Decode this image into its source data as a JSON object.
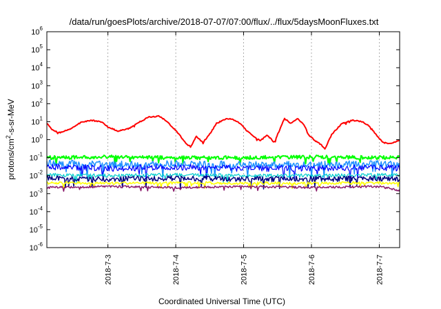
{
  "chart_data": {
    "type": "line",
    "title": "/data/run/goesPlots/archive/2018-07-07/07:00/flux/../flux/5daysMoonFluxes.txt",
    "xlabel": "Coordinated Universal Time (UTC)",
    "ylabel": {
      "base": "protons/cm",
      "sup": "2",
      "rest": "-s-sr-MeV"
    },
    "scale_y": "log",
    "ylim": [
      -6,
      6
    ],
    "y_ticks": [
      {
        "exp": -6,
        "base": "10",
        "sup": "-6"
      },
      {
        "exp": -5,
        "base": "10",
        "sup": "-5"
      },
      {
        "exp": -4,
        "base": "10",
        "sup": "-4"
      },
      {
        "exp": -3,
        "base": "10",
        "sup": "-3"
      },
      {
        "exp": -2,
        "base": "10",
        "sup": "-2"
      },
      {
        "exp": -1,
        "base": "10",
        "sup": "-1"
      },
      {
        "exp": 0,
        "base": "10",
        "sup": "0"
      },
      {
        "exp": 1,
        "base": "10",
        "sup": "1"
      },
      {
        "exp": 2,
        "base": "10",
        "sup": "2"
      },
      {
        "exp": 3,
        "base": "10",
        "sup": "3"
      },
      {
        "exp": 4,
        "base": "10",
        "sup": "4"
      },
      {
        "exp": 5,
        "base": "10",
        "sup": "5"
      },
      {
        "exp": 6,
        "base": "10",
        "sup": "6"
      }
    ],
    "xlim": [
      2.1,
      7.3
    ],
    "x_ticks": [
      {
        "day": 3,
        "label": "2018-7-3"
      },
      {
        "day": 4,
        "label": "2018-7-4"
      },
      {
        "day": 5,
        "label": "2018-7-5"
      },
      {
        "day": 6,
        "label": "2018-7-6"
      },
      {
        "day": 7,
        "label": "2018-7-7"
      }
    ],
    "grid": true,
    "series": [
      {
        "color": "#ff0000",
        "width": 2,
        "noise": 0.06,
        "points": [
          [
            2.1,
            8
          ],
          [
            2.2,
            3
          ],
          [
            2.3,
            2.5
          ],
          [
            2.45,
            4
          ],
          [
            2.6,
            9
          ],
          [
            2.75,
            12
          ],
          [
            2.9,
            10
          ],
          [
            3.0,
            5
          ],
          [
            3.15,
            3
          ],
          [
            3.3,
            4
          ],
          [
            3.45,
            9
          ],
          [
            3.6,
            18
          ],
          [
            3.75,
            20
          ],
          [
            3.85,
            12
          ],
          [
            3.95,
            5
          ],
          [
            4.05,
            2
          ],
          [
            4.15,
            0.6
          ],
          [
            4.22,
            0.4
          ],
          [
            4.3,
            1.5
          ],
          [
            4.4,
            0.7
          ],
          [
            4.5,
            2
          ],
          [
            4.6,
            8
          ],
          [
            4.75,
            15
          ],
          [
            4.85,
            13
          ],
          [
            4.95,
            8
          ],
          [
            5.05,
            3
          ],
          [
            5.15,
            1.5
          ],
          [
            5.25,
            0.9
          ],
          [
            5.35,
            1.8
          ],
          [
            5.45,
            0.7
          ],
          [
            5.55,
            5
          ],
          [
            5.6,
            15
          ],
          [
            5.7,
            8
          ],
          [
            5.8,
            15
          ],
          [
            5.9,
            6
          ],
          [
            5.95,
            2
          ],
          [
            6.05,
            0.9
          ],
          [
            6.15,
            0.5
          ],
          [
            6.2,
            0.3
          ],
          [
            6.3,
            2
          ],
          [
            6.45,
            8
          ],
          [
            6.6,
            12
          ],
          [
            6.75,
            10
          ],
          [
            6.85,
            6
          ],
          [
            6.95,
            2
          ],
          [
            7.05,
            0.7
          ],
          [
            7.15,
            0.6
          ],
          [
            7.25,
            0.8
          ],
          [
            7.3,
            0.9
          ]
        ]
      },
      {
        "color": "#00ff00",
        "width": 2,
        "noise": 0.2,
        "points": [
          [
            2.1,
            0.1
          ],
          [
            3.0,
            0.11
          ],
          [
            4.0,
            0.1
          ],
          [
            5.0,
            0.1
          ],
          [
            6.0,
            0.11
          ],
          [
            7.0,
            0.1
          ],
          [
            7.3,
            0.11
          ]
        ]
      },
      {
        "color": "#1e90ff",
        "width": 1.5,
        "noise": 0.4,
        "points": [
          [
            2.1,
            0.05
          ],
          [
            3.0,
            0.04
          ],
          [
            4.0,
            0.045
          ],
          [
            5.0,
            0.04
          ],
          [
            6.0,
            0.04
          ],
          [
            7.0,
            0.045
          ],
          [
            7.3,
            0.04
          ]
        ]
      },
      {
        "color": "#0000ff",
        "width": 1.2,
        "noise": 0.35,
        "points": [
          [
            2.1,
            0.03
          ],
          [
            3.0,
            0.025
          ],
          [
            4.0,
            0.03
          ],
          [
            5.0,
            0.025
          ],
          [
            6.0,
            0.025
          ],
          [
            7.0,
            0.03
          ],
          [
            7.3,
            0.025
          ]
        ]
      },
      {
        "color": "#00cccc",
        "width": 1.2,
        "noise": 0.2,
        "points": [
          [
            2.1,
            0.011
          ],
          [
            3.0,
            0.01
          ],
          [
            4.0,
            0.011
          ],
          [
            5.0,
            0.01
          ],
          [
            6.0,
            0.01
          ],
          [
            7.0,
            0.011
          ],
          [
            7.3,
            0.01
          ]
        ]
      },
      {
        "color": "#000080",
        "width": 1.5,
        "noise": 0.3,
        "points": [
          [
            2.1,
            0.007
          ],
          [
            3.0,
            0.0065
          ],
          [
            4.0,
            0.007
          ],
          [
            5.0,
            0.0065
          ],
          [
            6.0,
            0.0065
          ],
          [
            7.0,
            0.007
          ],
          [
            7.3,
            0.0065
          ]
        ]
      },
      {
        "color": "#ffff00",
        "width": 1.5,
        "noise": 0.15,
        "points": [
          [
            2.1,
            0.004
          ],
          [
            3.0,
            0.0038
          ],
          [
            4.0,
            0.004
          ],
          [
            5.0,
            0.0038
          ],
          [
            6.0,
            0.0038
          ],
          [
            7.0,
            0.004
          ],
          [
            7.3,
            0.0038
          ]
        ]
      },
      {
        "color": "#8b1a6b",
        "width": 1.5,
        "noise": 0.12,
        "points": [
          [
            2.1,
            0.0022
          ],
          [
            3.0,
            0.0025
          ],
          [
            4.0,
            0.0022
          ],
          [
            5.0,
            0.0025
          ],
          [
            6.0,
            0.0022
          ],
          [
            7.0,
            0.0025
          ],
          [
            7.3,
            0.0015
          ]
        ]
      }
    ]
  }
}
